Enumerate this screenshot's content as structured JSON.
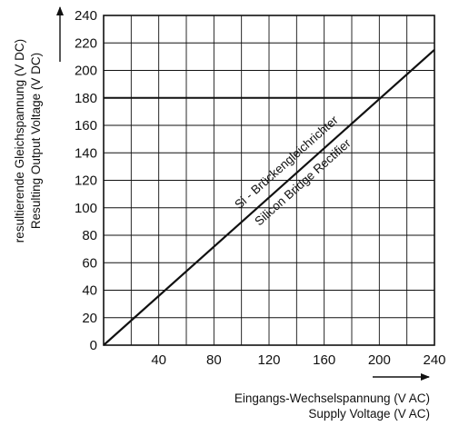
{
  "chart_data": {
    "type": "line",
    "x_axis": {
      "label_de": "Eingangs-Wechselspannung (V AC)",
      "label_en": "Supply Voltage (V AC)",
      "range": [
        0,
        240
      ],
      "ticks": [
        40,
        80,
        120,
        160,
        200,
        240
      ],
      "grid_step": 20
    },
    "y_axis": {
      "label_de": "resultierende Gleichspannung (V DC)",
      "label_en": "Resulting Output Voltage (V DC)",
      "range": [
        0,
        240
      ],
      "ticks": [
        0,
        20,
        40,
        60,
        80,
        100,
        120,
        140,
        160,
        180,
        200,
        220,
        240
      ],
      "grid_step": 20
    },
    "grid": true,
    "series": [
      {
        "x": [
          0,
          240
        ],
        "y": [
          0,
          215
        ]
      }
    ],
    "reference_lines": [
      {
        "orientation": "horizontal",
        "y": 180,
        "x_from": 0,
        "x_to": 200
      }
    ],
    "annotations": [
      {
        "text": "Si - Brückengleichrichter"
      },
      {
        "text": "Silicon Bridge Rectifier"
      }
    ]
  }
}
